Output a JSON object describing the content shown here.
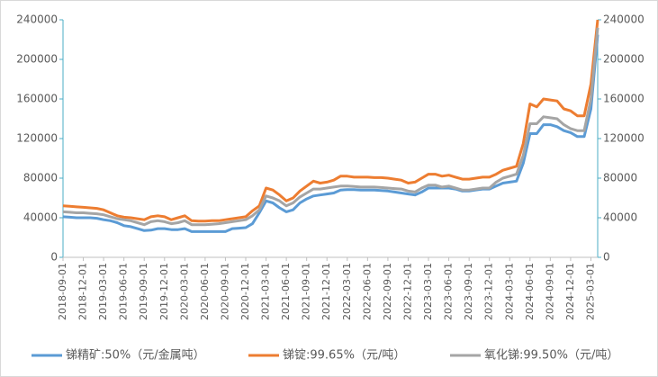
{
  "chart_data": {
    "type": "line",
    "categories": [
      "2018-09-01",
      null,
      null,
      "2018-12-01",
      null,
      null,
      "2019-03-01",
      null,
      null,
      "2019-06-01",
      null,
      null,
      "2019-09-01",
      null,
      null,
      "2019-12-01",
      null,
      null,
      "2020-03-01",
      null,
      null,
      "2020-06-01",
      null,
      null,
      "2020-09-01",
      null,
      null,
      "2020-12-01",
      null,
      null,
      "2021-03-01",
      null,
      null,
      "2021-06-01",
      null,
      null,
      "2021-09-01",
      null,
      null,
      "2021-12-01",
      null,
      null,
      "2022-03-01",
      null,
      null,
      "2022-06-01",
      null,
      null,
      "2022-09-01",
      null,
      null,
      "2022-12-01",
      null,
      null,
      "2023-03-01",
      null,
      null,
      "2023-06-01",
      null,
      null,
      "2023-09-01",
      null,
      null,
      "2023-12-01",
      null,
      null,
      "2024-03-01",
      null,
      null,
      "2024-06-01",
      null,
      null,
      "2024-09-01",
      null,
      null,
      "2024-12-01",
      null,
      null,
      "2025-03-01",
      null
    ],
    "series": [
      {
        "name": "锑精矿:50%（元/金属吨）",
        "color": "#5b9bd5",
        "values": [
          41000,
          40500,
          40000,
          40000,
          40000,
          39500,
          38000,
          37000,
          35000,
          32000,
          31000,
          29000,
          27000,
          27500,
          29000,
          29000,
          28000,
          28000,
          29000,
          26000,
          26000,
          26000,
          26000,
          26000,
          26000,
          29000,
          29500,
          30000,
          34000,
          45000,
          57000,
          55000,
          50000,
          46000,
          48000,
          55000,
          59000,
          62000,
          63000,
          64000,
          65000,
          68000,
          68500,
          68500,
          68000,
          68000,
          68000,
          67500,
          67000,
          66000,
          65000,
          64000,
          63000,
          66000,
          70000,
          70000,
          70000,
          70000,
          69000,
          67000,
          67000,
          68000,
          69000,
          69000,
          72000,
          75000,
          76000,
          77000,
          95000,
          125000,
          125000,
          134000,
          134000,
          132000,
          128000,
          126000,
          122000,
          122000,
          150000,
          225000
        ]
      },
      {
        "name": "锑锭:99.65%（元/吨）",
        "color": "#ed7d31",
        "values": [
          52000,
          51500,
          51000,
          50500,
          50000,
          49500,
          48000,
          45000,
          42000,
          40500,
          40000,
          39000,
          38000,
          41000,
          42000,
          41000,
          38000,
          40000,
          42000,
          37000,
          36500,
          36500,
          37000,
          37000,
          38000,
          39000,
          40000,
          41000,
          47000,
          52000,
          70000,
          68000,
          63000,
          57000,
          60000,
          67000,
          72000,
          77000,
          75000,
          76000,
          78000,
          82000,
          82000,
          81000,
          81000,
          81000,
          80500,
          80500,
          80000,
          79000,
          78000,
          75000,
          76000,
          80000,
          84000,
          84000,
          82000,
          83000,
          81000,
          79000,
          79000,
          80000,
          81000,
          81000,
          84000,
          88000,
          90000,
          92000,
          115000,
          155000,
          152000,
          160000,
          159000,
          158000,
          150000,
          148000,
          143000,
          143000,
          175000,
          240000
        ]
      },
      {
        "name": "氧化锑:99.50%（元/吨）",
        "color": "#a5a5a5",
        "values": [
          46000,
          45500,
          45000,
          45000,
          44500,
          44000,
          43000,
          41000,
          39000,
          38000,
          37000,
          35000,
          33000,
          36000,
          37000,
          36000,
          34000,
          35000,
          37000,
          33000,
          33000,
          33000,
          33500,
          34000,
          35000,
          36000,
          37000,
          38000,
          42000,
          48000,
          62000,
          60000,
          57000,
          52000,
          55000,
          61000,
          65000,
          69000,
          69000,
          70000,
          71000,
          72000,
          72000,
          71500,
          71000,
          71000,
          71000,
          70500,
          70000,
          69500,
          69000,
          67000,
          66000,
          70000,
          73000,
          73000,
          71000,
          72000,
          70000,
          68000,
          68000,
          69000,
          70000,
          70000,
          76000,
          80000,
          82000,
          84000,
          103000,
          135000,
          135000,
          142000,
          141000,
          140000,
          134000,
          130000,
          128000,
          128000,
          160000,
          232000
        ]
      }
    ],
    "ylim": [
      0,
      240000
    ],
    "yticks": [
      0,
      40000,
      80000,
      120000,
      160000,
      200000,
      240000
    ],
    "y2lim": [
      0,
      240000
    ],
    "y2ticks": [
      0,
      40000,
      80000,
      120000,
      160000,
      200000,
      240000
    ],
    "legend": "bottom"
  }
}
